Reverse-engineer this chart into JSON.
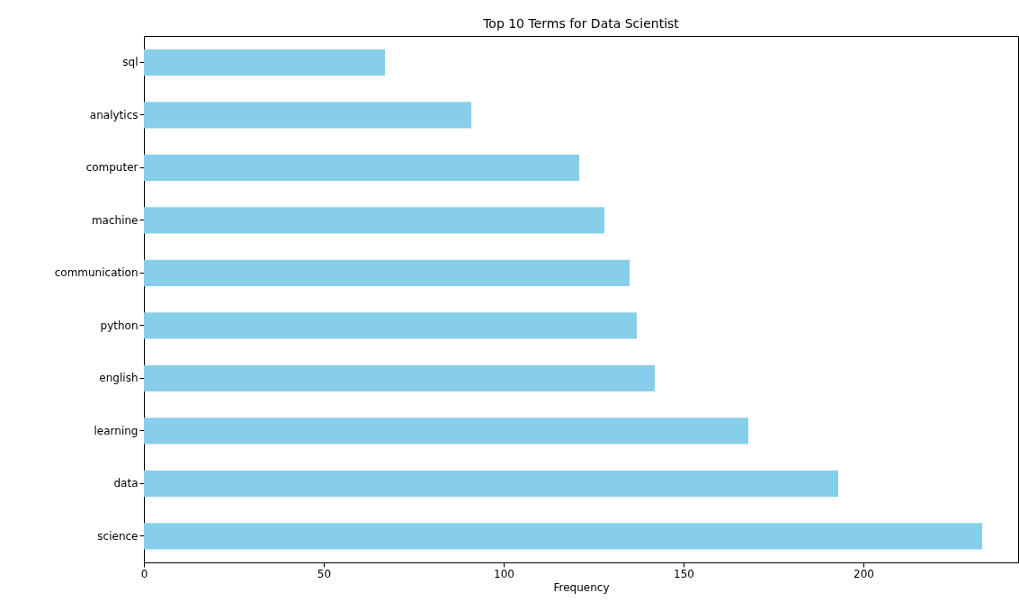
{
  "chart_data": {
    "type": "bar",
    "orientation": "horizontal",
    "title": "Top 10 Terms for Data Scientist",
    "xlabel": "Frequency",
    "categories": [
      "sql",
      "analytics",
      "computer",
      "machine",
      "communication",
      "python",
      "english",
      "learning",
      "data",
      "science"
    ],
    "values": [
      67,
      91,
      121,
      128,
      135,
      137,
      142,
      168,
      193,
      233
    ],
    "color": "#87ceeb",
    "xlim": [
      0,
      243
    ],
    "xticks": [
      0,
      50,
      100,
      150,
      200
    ],
    "grid": false
  }
}
